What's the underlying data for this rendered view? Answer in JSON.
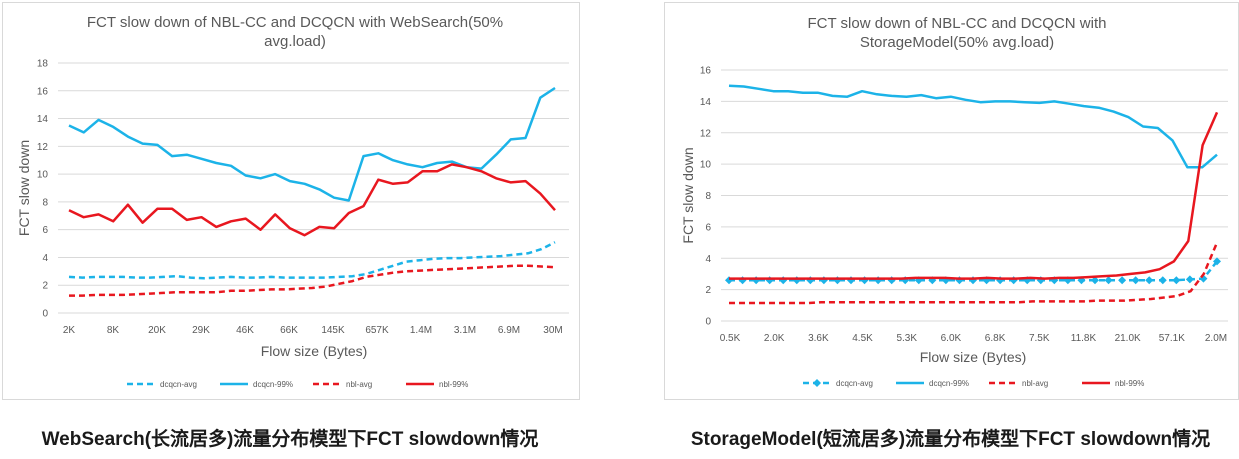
{
  "captions": {
    "left": "WebSearch(长流居多)流量分布模型下FCT slowdown情况",
    "right": "StorageModel(短流居多)流量分布模型下FCT slowdown情况"
  },
  "colors": {
    "dcqcn": "#1cb3e8",
    "nbl": "#e8171f",
    "grid": "#d9d9d9"
  },
  "chart_data": [
    {
      "type": "line",
      "title_lines": [
        "FCT slow down of  NBL-CC and DCQCN with WebSearch(50%",
        "avg.load)"
      ],
      "xlabel": "Flow size (Bytes)",
      "ylabel": "FCT slow down",
      "ylim": [
        0,
        18
      ],
      "yticks": [
        "0",
        "2",
        "4",
        "6",
        "8",
        "10",
        "12",
        "14",
        "16",
        "18"
      ],
      "xtick_labels": [
        "2K",
        "8K",
        "20K",
        "29K",
        "46K",
        "66K",
        "145K",
        "657K",
        "1.4M",
        "3.1M",
        "6.9M",
        "30M"
      ],
      "series": [
        {
          "name": "dcqcn-avg",
          "style": "dashed",
          "color": "#1cb3e8",
          "values": [
            2.6,
            2.55,
            2.6,
            2.6,
            2.6,
            2.55,
            2.55,
            2.6,
            2.65,
            2.55,
            2.5,
            2.55,
            2.6,
            2.55,
            2.55,
            2.6,
            2.55,
            2.55,
            2.55,
            2.55,
            2.6,
            2.65,
            2.8,
            3.1,
            3.4,
            3.7,
            3.8,
            3.9,
            3.95,
            3.95,
            4.0,
            4.05,
            4.1,
            4.2,
            4.3,
            4.6,
            5.1
          ]
        },
        {
          "name": "dcqcn-99%",
          "style": "solid",
          "color": "#1cb3e8",
          "values": [
            13.5,
            13.0,
            13.9,
            13.4,
            12.7,
            12.2,
            12.1,
            11.3,
            11.4,
            11.1,
            10.8,
            10.6,
            9.9,
            9.7,
            10.0,
            9.5,
            9.3,
            8.9,
            8.3,
            8.1,
            11.3,
            11.5,
            11.0,
            10.7,
            10.5,
            10.8,
            10.9,
            10.5,
            10.4,
            11.4,
            12.5,
            12.6,
            15.5,
            16.2
          ]
        },
        {
          "name": "nbl-avg",
          "style": "dashed",
          "color": "#e8171f",
          "values": [
            1.25,
            1.25,
            1.3,
            1.3,
            1.3,
            1.35,
            1.4,
            1.45,
            1.5,
            1.5,
            1.5,
            1.5,
            1.6,
            1.6,
            1.65,
            1.7,
            1.7,
            1.75,
            1.8,
            1.9,
            2.1,
            2.3,
            2.6,
            2.75,
            2.9,
            3.0,
            3.05,
            3.1,
            3.15,
            3.2,
            3.25,
            3.3,
            3.35,
            3.4,
            3.4,
            3.35,
            3.3
          ]
        },
        {
          "name": "nbl-99%",
          "style": "solid",
          "color": "#e8171f",
          "values": [
            7.4,
            6.9,
            7.1,
            6.6,
            7.8,
            6.5,
            7.5,
            7.5,
            6.7,
            6.9,
            6.2,
            6.6,
            6.8,
            6.0,
            7.1,
            6.1,
            5.6,
            6.2,
            6.1,
            7.2,
            7.7,
            9.6,
            9.3,
            9.4,
            10.2,
            10.2,
            10.7,
            10.5,
            10.2,
            9.7,
            9.4,
            9.5,
            8.6,
            7.4
          ]
        }
      ]
    },
    {
      "type": "line",
      "title_lines": [
        "FCT slow down of NBL-CC and DCQCN with",
        "StorageModel(50% avg.load)"
      ],
      "xlabel": "Flow size (Bytes)",
      "ylabel": "FCT slow down",
      "ylim": [
        0,
        16
      ],
      "yticks": [
        "0",
        "2",
        "4",
        "6",
        "8",
        "10",
        "12",
        "14",
        "16"
      ],
      "xtick_labels": [
        "0.5K",
        "2.0K",
        "3.6K",
        "4.5K",
        "5.3K",
        "6.0K",
        "6.8K",
        "7.5K",
        "11.8K",
        "21.0K",
        "57.1K",
        "2.0M"
      ],
      "series": [
        {
          "name": "dcqcn-avg",
          "style": "dashed-diamond",
          "color": "#1cb3e8",
          "values": [
            2.6,
            2.6,
            2.6,
            2.6,
            2.6,
            2.6,
            2.6,
            2.6,
            2.6,
            2.6,
            2.6,
            2.6,
            2.6,
            2.6,
            2.6,
            2.6,
            2.6,
            2.6,
            2.6,
            2.6,
            2.6,
            2.6,
            2.6,
            2.6,
            2.6,
            2.6,
            2.6,
            2.6,
            2.6,
            2.6,
            2.6,
            2.6,
            2.6,
            2.6,
            2.65,
            2.7,
            3.8
          ]
        },
        {
          "name": "dcqcn-99%",
          "style": "solid",
          "color": "#1cb3e8",
          "values": [
            15.0,
            14.95,
            14.8,
            14.65,
            14.65,
            14.55,
            14.55,
            14.35,
            14.3,
            14.65,
            14.45,
            14.35,
            14.3,
            14.4,
            14.2,
            14.3,
            14.1,
            13.95,
            14.0,
            14.0,
            13.95,
            13.9,
            14.0,
            13.85,
            13.7,
            13.6,
            13.35,
            13.0,
            12.4,
            12.3,
            11.5,
            9.8,
            9.8,
            10.6
          ]
        },
        {
          "name": "nbl-avg",
          "style": "dashed",
          "color": "#e8171f",
          "values": [
            1.15,
            1.15,
            1.15,
            1.15,
            1.15,
            1.15,
            1.15,
            1.2,
            1.2,
            1.2,
            1.2,
            1.2,
            1.2,
            1.2,
            1.2,
            1.2,
            1.2,
            1.2,
            1.2,
            1.2,
            1.2,
            1.2,
            1.2,
            1.25,
            1.25,
            1.25,
            1.25,
            1.25,
            1.3,
            1.3,
            1.3,
            1.35,
            1.4,
            1.5,
            1.6,
            1.9,
            3.0,
            5.0
          ]
        },
        {
          "name": "nbl-99%",
          "style": "solid",
          "color": "#e8171f",
          "values": [
            2.7,
            2.7,
            2.7,
            2.7,
            2.7,
            2.7,
            2.7,
            2.7,
            2.7,
            2.7,
            2.7,
            2.7,
            2.7,
            2.75,
            2.75,
            2.75,
            2.7,
            2.7,
            2.75,
            2.7,
            2.7,
            2.75,
            2.7,
            2.75,
            2.75,
            2.8,
            2.85,
            2.9,
            3.0,
            3.1,
            3.3,
            3.8,
            5.1,
            11.2,
            13.3
          ]
        }
      ]
    }
  ]
}
